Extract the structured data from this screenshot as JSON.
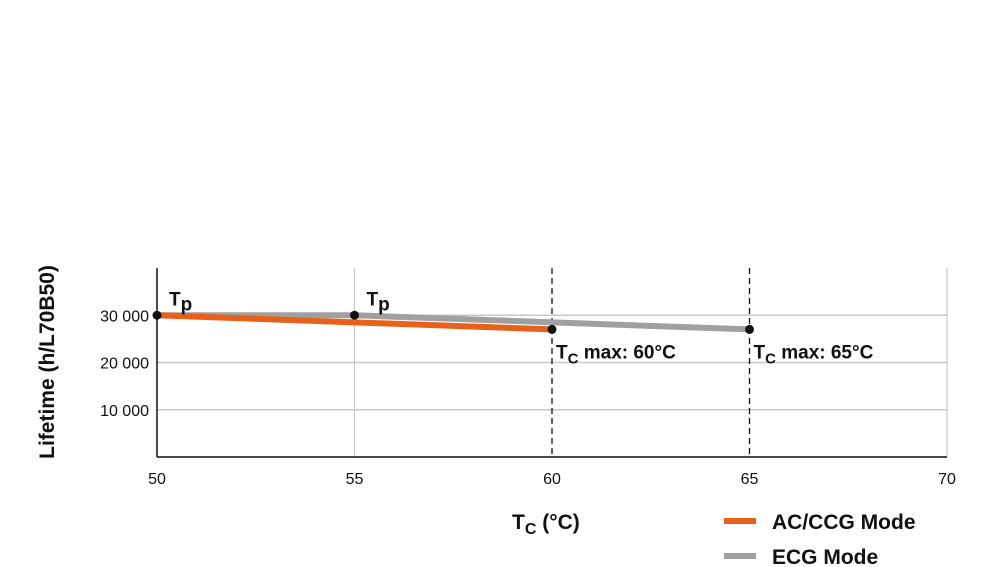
{
  "chart_data": {
    "type": "line",
    "xlabel_main": "T",
    "xlabel_sub": "C",
    "xlabel_rest": " (°C)",
    "ylabel": "Lifetime (h/L70B50)",
    "xlim": [
      50,
      70
    ],
    "ylim": [
      0,
      40000
    ],
    "xticks": [
      50,
      55,
      60,
      65,
      70
    ],
    "xtick_labels": [
      "50",
      "55",
      "60",
      "65",
      "70"
    ],
    "yticks": [
      10000,
      20000,
      30000
    ],
    "ytick_labels": [
      "10 000",
      "20 000",
      "30 000"
    ],
    "grid": true,
    "legend_position": "bottom-right",
    "series": [
      {
        "name": "AC/CCG Mode",
        "color": "#e8611a",
        "x": [
          50,
          60
        ],
        "y": [
          30000,
          27000
        ]
      },
      {
        "name": "ECG Mode",
        "color": "#a0a0a0",
        "x": [
          50,
          55,
          65
        ],
        "y": [
          30000,
          30000,
          27000
        ]
      }
    ],
    "markers": [
      {
        "x": 50,
        "y": 30000
      },
      {
        "x": 55,
        "y": 30000
      },
      {
        "x": 60,
        "y": 27000
      },
      {
        "x": 65,
        "y": 27000
      }
    ],
    "dashed_lines_x": [
      60,
      65
    ],
    "annotations": [
      {
        "x": 50,
        "y": 30000,
        "main": "T",
        "sub": "p",
        "rest": ""
      },
      {
        "x": 55,
        "y": 30000,
        "main": "T",
        "sub": "p",
        "rest": ""
      },
      {
        "x": 60,
        "y": 27000,
        "main": "T",
        "sub": "C",
        "rest": " max: 60°C"
      },
      {
        "x": 65,
        "y": 27000,
        "main": "T",
        "sub": "C",
        "rest": " max: 65°C"
      }
    ]
  }
}
